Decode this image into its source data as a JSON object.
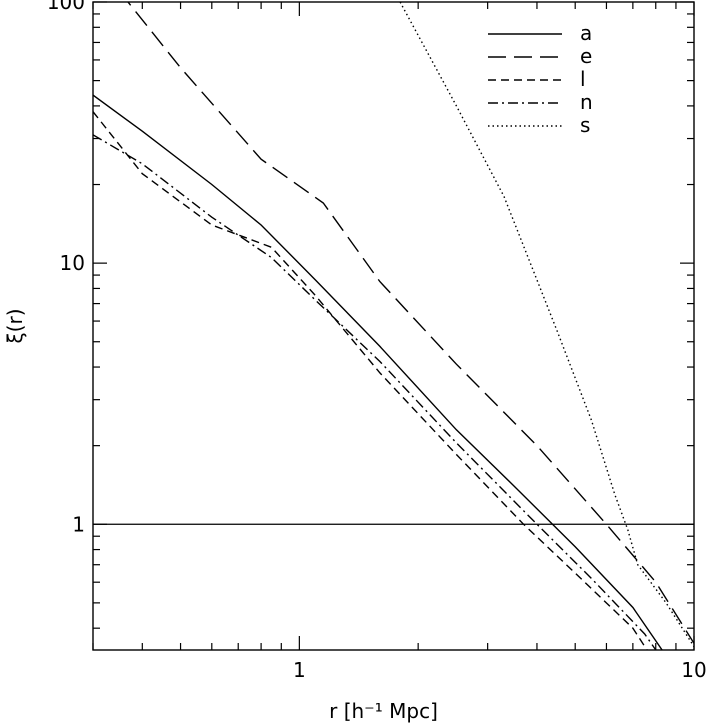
{
  "chart_data": {
    "type": "line",
    "title": "",
    "xlabel": "r   [h⁻¹ Mpc]",
    "ylabel": "ξ(r)",
    "xscale": "log",
    "yscale": "log",
    "xlim": [
      0.3,
      10
    ],
    "ylim": [
      0.33,
      100
    ],
    "grid": false,
    "legend_position": "top-right",
    "x_ticks": [
      {
        "value": 1,
        "label": "1"
      },
      {
        "value": 10,
        "label": "10"
      }
    ],
    "y_ticks": [
      {
        "value": 1,
        "label": "1"
      },
      {
        "value": 10,
        "label": "10"
      },
      {
        "value": 100,
        "label": "100"
      }
    ],
    "reference_line": {
      "y": 1,
      "style": "solid"
    },
    "series": [
      {
        "name": "a",
        "style": "solid",
        "points": [
          [
            0.3,
            44
          ],
          [
            0.4,
            32
          ],
          [
            0.6,
            20
          ],
          [
            0.8,
            14
          ],
          [
            1.1,
            8.6
          ],
          [
            1.6,
            4.8
          ],
          [
            2.5,
            2.3
          ],
          [
            3.5,
            1.4
          ],
          [
            5,
            0.82
          ],
          [
            7,
            0.48
          ],
          [
            8.3,
            0.33
          ]
        ]
      },
      {
        "name": "e",
        "style": "long-dash",
        "points": [
          [
            0.35,
            110
          ],
          [
            0.5,
            56
          ],
          [
            0.8,
            25
          ],
          [
            1.15,
            17
          ],
          [
            1.6,
            8.5
          ],
          [
            2.5,
            4.1
          ],
          [
            4,
            2.0
          ],
          [
            6,
            1.0
          ],
          [
            8,
            0.6
          ],
          [
            10,
            0.35
          ]
        ]
      },
      {
        "name": "l",
        "style": "short-dash",
        "points": [
          [
            0.3,
            38
          ],
          [
            0.4,
            22
          ],
          [
            0.6,
            14
          ],
          [
            0.85,
            11.5
          ],
          [
            1.1,
            7.5
          ],
          [
            1.6,
            3.8
          ],
          [
            2.5,
            1.85
          ],
          [
            3.7,
            1.0
          ],
          [
            5,
            0.65
          ],
          [
            7,
            0.4
          ],
          [
            7.6,
            0.33
          ]
        ]
      },
      {
        "name": "n",
        "style": "dash-dot",
        "points": [
          [
            0.3,
            31
          ],
          [
            0.4,
            24
          ],
          [
            0.6,
            15
          ],
          [
            0.85,
            10.5
          ],
          [
            1.1,
            7.2
          ],
          [
            1.6,
            4.2
          ],
          [
            2.5,
            2.05
          ],
          [
            4,
            1.0
          ],
          [
            5.5,
            0.62
          ],
          [
            7.5,
            0.38
          ],
          [
            8,
            0.33
          ]
        ]
      },
      {
        "name": "s",
        "style": "dotted",
        "points": [
          [
            1.8,
            100
          ],
          [
            2.5,
            40
          ],
          [
            3.3,
            18
          ],
          [
            4.5,
            5.5
          ],
          [
            5.5,
            2.5
          ],
          [
            6.3,
            1.3
          ],
          [
            6.8,
            0.95
          ],
          [
            7.2,
            0.7
          ],
          [
            8.5,
            0.5
          ],
          [
            10,
            0.34
          ]
        ]
      }
    ]
  }
}
